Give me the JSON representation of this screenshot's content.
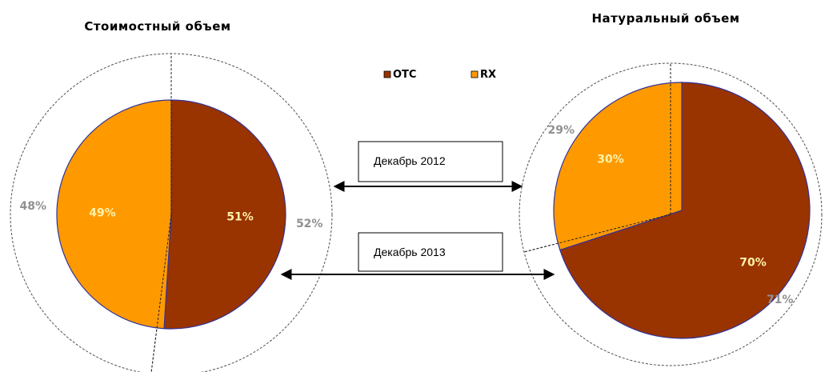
{
  "chart_data": [
    {
      "type": "pie",
      "title": "Стоимостный объем",
      "categories": [
        "OTC",
        "RX"
      ],
      "series": [
        {
          "name": "Декабрь 2013",
          "values": [
            51,
            49
          ],
          "labels": [
            "51%",
            "49%"
          ]
        },
        {
          "name": "Декабрь 2012",
          "values": [
            52,
            48
          ],
          "labels": [
            "52%",
            "48%"
          ]
        }
      ]
    },
    {
      "type": "pie",
      "title": "Натуральный объем",
      "categories": [
        "OTC",
        "RX"
      ],
      "series": [
        {
          "name": "Декабрь 2013",
          "values": [
            70,
            30
          ],
          "labels": [
            "70%",
            "30%"
          ]
        },
        {
          "name": "Декабрь 2012",
          "values": [
            71,
            29
          ],
          "labels": [
            "71%",
            "29%"
          ]
        }
      ]
    }
  ],
  "legend": {
    "items": [
      "OTC",
      "RX"
    ]
  },
  "colors": {
    "OTC": "#993300",
    "RX": "#ff9900",
    "pie_border": "#333399",
    "ring_line": "#505050"
  },
  "annotations": {
    "dec2012": "Декабрь 2012",
    "dec2013": "Декабрь 2013"
  }
}
